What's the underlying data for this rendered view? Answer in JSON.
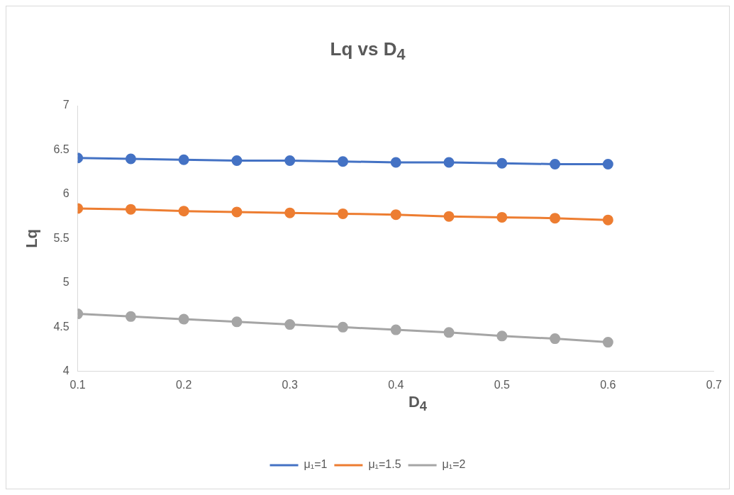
{
  "chart_data": {
    "type": "line",
    "title": "Lq vs D$_{4}$",
    "xlabel": "D$_{4}$",
    "ylabel": "Lq",
    "x": [
      0.1,
      0.15,
      0.2,
      0.25,
      0.3,
      0.35,
      0.4,
      0.45,
      0.5,
      0.55,
      0.6
    ],
    "series": [
      {
        "name": "μ₁=1",
        "color": "#4472c4",
        "values": [
          6.41,
          6.4,
          6.39,
          6.38,
          6.38,
          6.37,
          6.36,
          6.36,
          6.35,
          6.34,
          6.34
        ]
      },
      {
        "name": "μ₁=1.5",
        "color": "#ed7d31",
        "values": [
          5.84,
          5.83,
          5.81,
          5.8,
          5.79,
          5.78,
          5.77,
          5.75,
          5.74,
          5.73,
          5.71
        ]
      },
      {
        "name": "μ₁=2",
        "color": "#a5a5a5",
        "values": [
          4.65,
          4.62,
          4.59,
          4.56,
          4.53,
          4.5,
          4.47,
          4.44,
          4.4,
          4.37,
          4.33
        ]
      }
    ],
    "xlim": [
      0.1,
      0.7
    ],
    "xticks": [
      0.1,
      0.2,
      0.3,
      0.4,
      0.5,
      0.6,
      0.7
    ],
    "ylim": [
      4,
      7
    ],
    "yticks": [
      4,
      4.5,
      5,
      5.5,
      6,
      6.5,
      7
    ],
    "grid": false,
    "legend": "bottom",
    "marker": "circle",
    "line_style": "solid"
  }
}
